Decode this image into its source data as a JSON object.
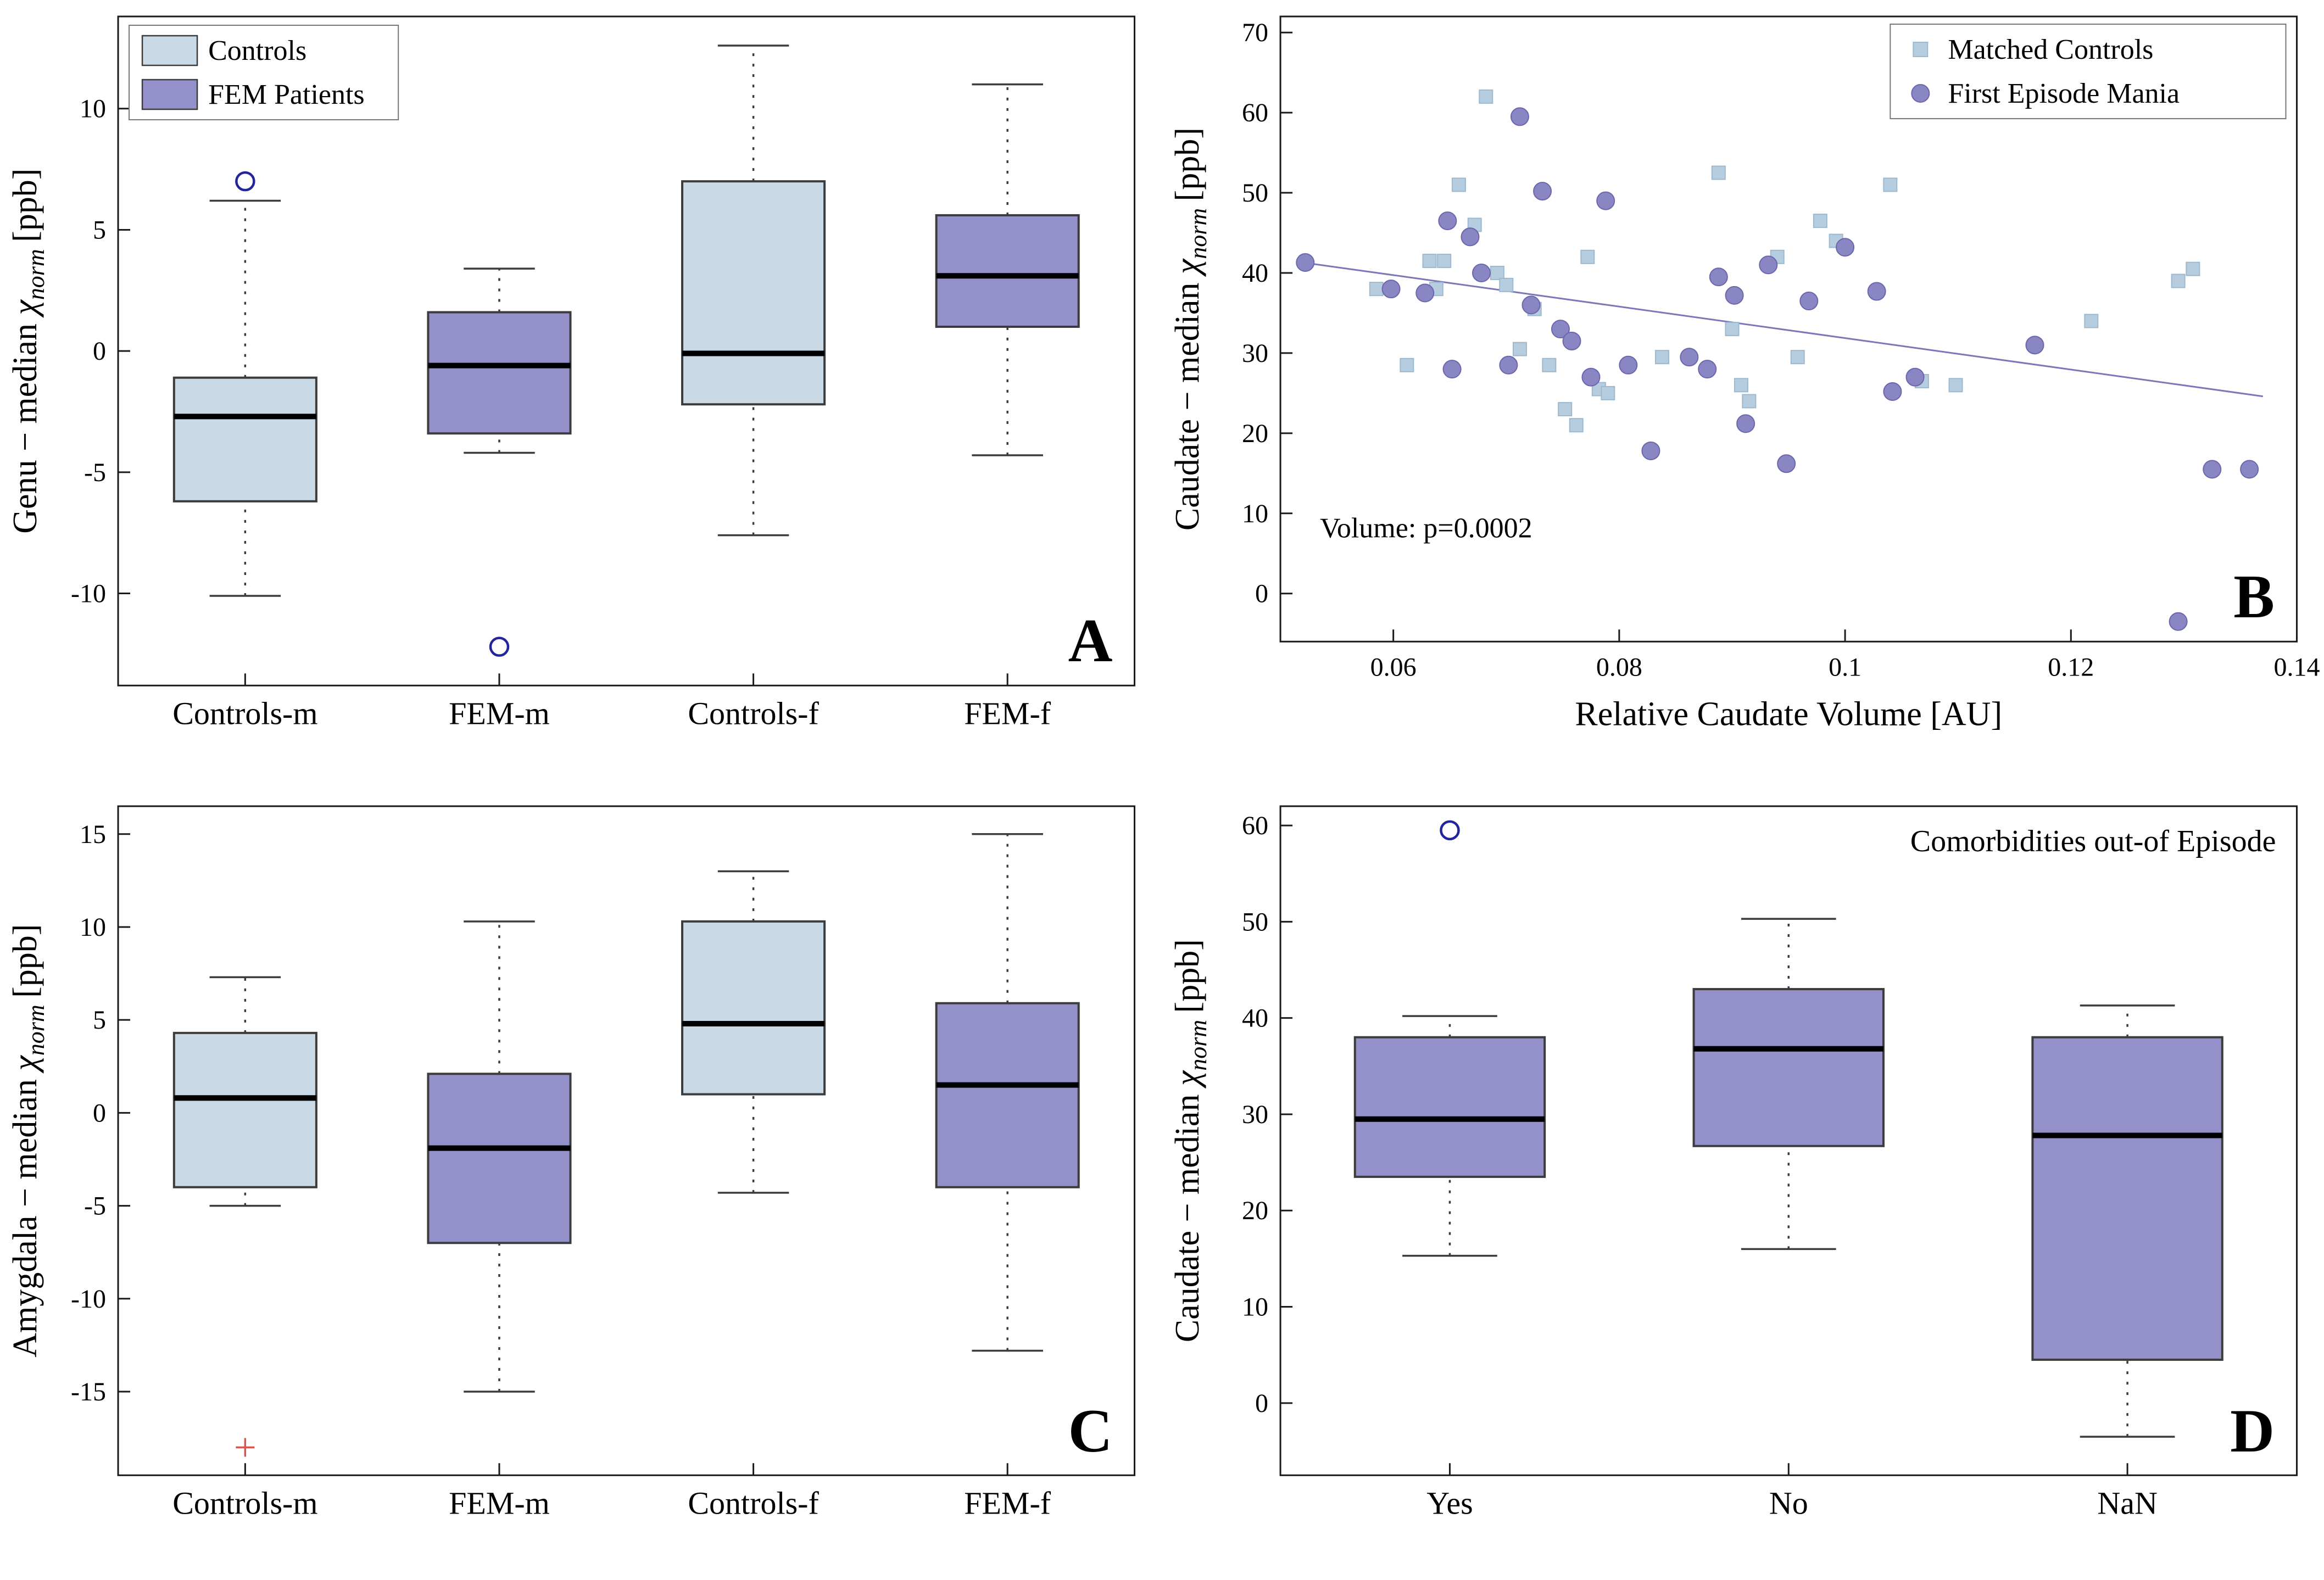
{
  "figure": {
    "colors": {
      "axis": "#1a1a1a",
      "controls_fill": "#c9d9e6",
      "fem_fill": "#9390ca",
      "box_edge": "#3c3c3c",
      "median": "#000000",
      "whisker": "#3c3c3c",
      "outlier": "#24249c",
      "plus": "#d9534f",
      "square_fill": "#b6cddf",
      "square_edge": "#9db9cf",
      "circle_fill": "#8a86c3",
      "circle_edge": "#6b67ad",
      "fit_line": "#7b78ba"
    }
  },
  "chart_data": [
    {
      "id": "A",
      "type": "boxplot",
      "panel_letter": "A",
      "ylabel": "Genu − median χ_norm [ppb]",
      "ylabel_parts": {
        "pre": "Genu − median ",
        "chi": "χ",
        "sub": "norm",
        "post": " [ppb]"
      },
      "categories": [
        "Controls-m",
        "FEM-m",
        "Controls-f",
        "FEM-f"
      ],
      "ylim": [
        -13.8,
        13.8
      ],
      "yticks": [
        -10,
        -5,
        0,
        5,
        10
      ],
      "legend": {
        "entries": [
          {
            "label": "Controls",
            "group": "controls"
          },
          {
            "label": "FEM Patients",
            "group": "fem"
          }
        ]
      },
      "outlier_marker": "circle",
      "boxes": [
        {
          "category": "Controls-m",
          "group": "controls",
          "whisker_low": -10.1,
          "q1": -6.2,
          "median": -2.7,
          "q3": -1.1,
          "whisker_high": 6.2,
          "outliers": [
            7.0
          ]
        },
        {
          "category": "FEM-m",
          "group": "fem",
          "whisker_low": -4.2,
          "q1": -3.4,
          "median": -0.6,
          "q3": 1.6,
          "whisker_high": 3.4,
          "outliers": [
            -12.2
          ]
        },
        {
          "category": "Controls-f",
          "group": "controls",
          "whisker_low": -7.6,
          "q1": -2.2,
          "median": -0.1,
          "q3": 7.0,
          "whisker_high": 12.6,
          "outliers": []
        },
        {
          "category": "FEM-f",
          "group": "fem",
          "whisker_low": -4.3,
          "q1": 1.0,
          "median": 3.1,
          "q3": 5.6,
          "whisker_high": 11.0,
          "outliers": []
        }
      ]
    },
    {
      "id": "B",
      "type": "scatter",
      "panel_letter": "B",
      "xlabel": "Relative Caudate Volume [AU]",
      "ylabel": "Caudate − median χ_norm [ppb]",
      "ylabel_parts": {
        "pre": "Caudate − median ",
        "chi": "χ",
        "sub": "norm",
        "post": " [ppb]"
      },
      "xlim": [
        0.05,
        0.14
      ],
      "ylim": [
        -6,
        72
      ],
      "xticks": [
        0.06,
        0.08,
        0.1,
        0.12,
        0.14
      ],
      "xtick_labels": [
        "0.06",
        "0.08",
        "0.1",
        "0.12",
        "0.14"
      ],
      "yticks": [
        0,
        10,
        20,
        30,
        40,
        50,
        60,
        70
      ],
      "annotation": {
        "text": "Volume:  p=0.0002",
        "x": 0.0535,
        "y": 7
      },
      "legend": {
        "entries": [
          {
            "label": "Matched Controls",
            "marker": "square"
          },
          {
            "label": "First Episode Mania",
            "marker": "circle"
          }
        ]
      },
      "fit_line": {
        "x1": 0.052,
        "y1": 41.3,
        "x2": 0.137,
        "y2": 24.6
      },
      "series": [
        {
          "name": "Matched Controls",
          "marker": "square",
          "points": [
            [
              0.0585,
              38
            ],
            [
              0.0612,
              28.5
            ],
            [
              0.0632,
              41.5
            ],
            [
              0.0638,
              38
            ],
            [
              0.0645,
              41.5
            ],
            [
              0.0658,
              51
            ],
            [
              0.0672,
              46
            ],
            [
              0.0682,
              62
            ],
            [
              0.0692,
              40
            ],
            [
              0.07,
              38.5
            ],
            [
              0.0712,
              30.5
            ],
            [
              0.0725,
              35.5
            ],
            [
              0.0738,
              28.5
            ],
            [
              0.0752,
              23
            ],
            [
              0.0762,
              21
            ],
            [
              0.0772,
              42
            ],
            [
              0.0782,
              25.5
            ],
            [
              0.079,
              25
            ],
            [
              0.0838,
              29.5
            ],
            [
              0.0888,
              52.5
            ],
            [
              0.09,
              33
            ],
            [
              0.0908,
              26
            ],
            [
              0.0915,
              24
            ],
            [
              0.094,
              42
            ],
            [
              0.0958,
              29.5
            ],
            [
              0.0978,
              46.5
            ],
            [
              0.0992,
              44
            ],
            [
              0.104,
              51
            ],
            [
              0.1068,
              26.5
            ],
            [
              0.1098,
              26
            ],
            [
              0.1218,
              34
            ],
            [
              0.1295,
              39
            ],
            [
              0.1308,
              40.5
            ]
          ]
        },
        {
          "name": "First Episode Mania",
          "marker": "circle",
          "points": [
            [
              0.0522,
              41.3
            ],
            [
              0.0598,
              38
            ],
            [
              0.0628,
              37.5
            ],
            [
              0.0648,
              46.5
            ],
            [
              0.0652,
              28
            ],
            [
              0.0668,
              44.5
            ],
            [
              0.0678,
              40
            ],
            [
              0.0702,
              28.5
            ],
            [
              0.0712,
              59.5
            ],
            [
              0.0722,
              36
            ],
            [
              0.0732,
              50.2
            ],
            [
              0.0748,
              33
            ],
            [
              0.0758,
              31.5
            ],
            [
              0.0775,
              27
            ],
            [
              0.0788,
              49
            ],
            [
              0.0808,
              28.5
            ],
            [
              0.0828,
              17.8
            ],
            [
              0.0862,
              29.5
            ],
            [
              0.0878,
              28
            ],
            [
              0.0888,
              39.5
            ],
            [
              0.0902,
              37.2
            ],
            [
              0.0912,
              21.2
            ],
            [
              0.0932,
              41
            ],
            [
              0.0948,
              16.2
            ],
            [
              0.0968,
              36.5
            ],
            [
              0.1,
              43.2
            ],
            [
              0.1028,
              37.7
            ],
            [
              0.1042,
              25.2
            ],
            [
              0.1062,
              27
            ],
            [
              0.1168,
              31
            ],
            [
              0.1295,
              -3.5
            ],
            [
              0.1325,
              15.5
            ],
            [
              0.1358,
              15.5
            ]
          ]
        }
      ]
    },
    {
      "id": "C",
      "type": "boxplot",
      "panel_letter": "C",
      "ylabel": "Amygdala − median χ_norm [ppb]",
      "ylabel_parts": {
        "pre": "Amygdala − median ",
        "chi": "χ",
        "sub": "norm",
        "post": " [ppb]"
      },
      "categories": [
        "Controls-m",
        "FEM-m",
        "Controls-f",
        "FEM-f"
      ],
      "ylim": [
        -19.5,
        16.5
      ],
      "yticks": [
        -15,
        -10,
        -5,
        0,
        5,
        10,
        15
      ],
      "outlier_marker": "plus",
      "boxes": [
        {
          "category": "Controls-m",
          "group": "controls",
          "whisker_low": -5.0,
          "q1": -4.0,
          "median": 0.8,
          "q3": 4.3,
          "whisker_high": 7.3,
          "outliers": [
            -18.0
          ]
        },
        {
          "category": "FEM-m",
          "group": "fem",
          "whisker_low": -15.0,
          "q1": -7.0,
          "median": -1.9,
          "q3": 2.1,
          "whisker_high": 10.3,
          "outliers": []
        },
        {
          "category": "Controls-f",
          "group": "controls",
          "whisker_low": -4.3,
          "q1": 1.0,
          "median": 4.8,
          "q3": 10.3,
          "whisker_high": 13.0,
          "outliers": []
        },
        {
          "category": "FEM-f",
          "group": "fem",
          "whisker_low": -12.8,
          "q1": -4.0,
          "median": 1.5,
          "q3": 5.9,
          "whisker_high": 15.0,
          "outliers": []
        }
      ]
    },
    {
      "id": "D",
      "type": "boxplot",
      "panel_letter": "D",
      "ylabel": "Caudate − median χ_norm [ppb]",
      "ylabel_parts": {
        "pre": "Caudate − median ",
        "chi": "χ",
        "sub": "norm",
        "post": " [ppb]"
      },
      "annotation": {
        "text": "Comorbidities out-of Episode",
        "anchor": "top-right"
      },
      "categories": [
        "Yes",
        "No",
        "NaN"
      ],
      "ylim": [
        -7.5,
        62
      ],
      "yticks": [
        0,
        10,
        20,
        30,
        40,
        50,
        60
      ],
      "outlier_marker": "circle",
      "boxes": [
        {
          "category": "Yes",
          "group": "fem",
          "whisker_low": 15.3,
          "q1": 23.5,
          "median": 29.5,
          "q3": 38.0,
          "whisker_high": 40.2,
          "outliers": [
            59.5
          ]
        },
        {
          "category": "No",
          "group": "fem",
          "whisker_low": 16.0,
          "q1": 26.7,
          "median": 36.8,
          "q3": 43.0,
          "whisker_high": 50.3,
          "outliers": []
        },
        {
          "category": "NaN",
          "group": "fem",
          "whisker_low": -3.5,
          "q1": 4.5,
          "median": 27.8,
          "q3": 38.0,
          "whisker_high": 41.3,
          "outliers": []
        }
      ]
    }
  ]
}
